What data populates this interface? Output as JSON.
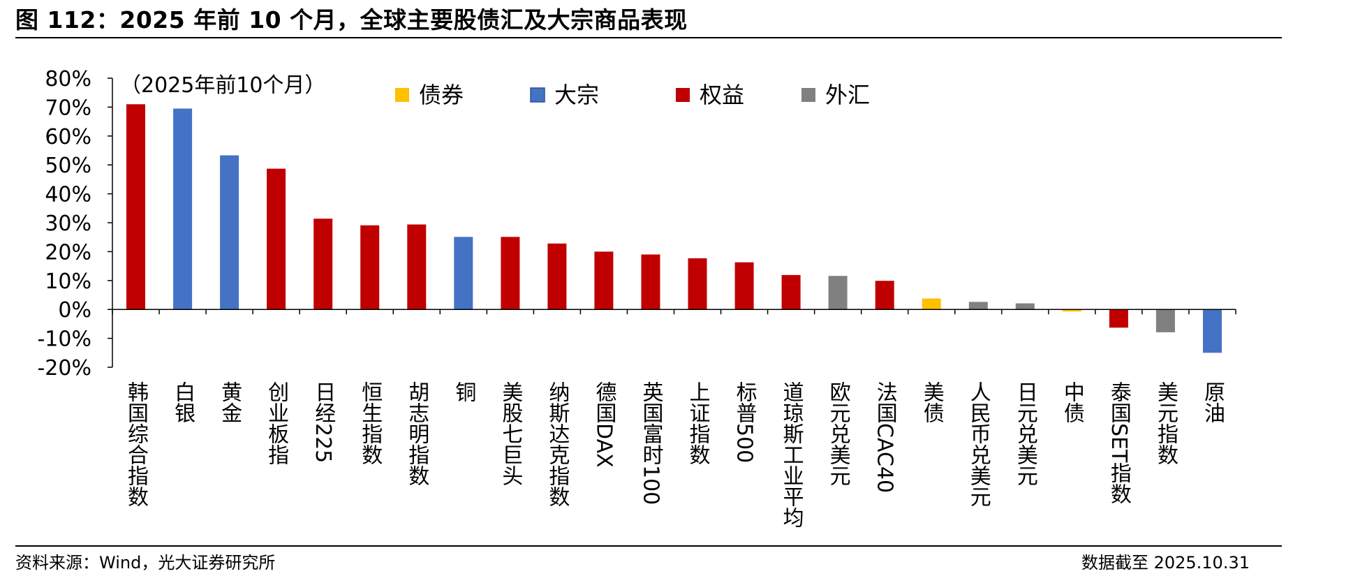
{
  "figure": {
    "title": "图 112：2025 年前 10 个月，全球主要股债汇及大宗商品表现",
    "source": "资料来源：Wind，光大证券研究所",
    "date_note": "数据截至 2025.10.31"
  },
  "chart_data": {
    "type": "bar",
    "note": "（2025年前10个月）",
    "ylim": [
      -20,
      80
    ],
    "yticks": [
      80,
      70,
      60,
      50,
      40,
      30,
      20,
      10,
      0,
      -10,
      -20
    ],
    "ytick_labels": [
      "80%",
      "70%",
      "60%",
      "50%",
      "40%",
      "30%",
      "20%",
      "10%",
      "0%",
      "-10%",
      "-20%"
    ],
    "legend_position": "top",
    "legend": [
      {
        "name": "债券",
        "color": "#FFC000"
      },
      {
        "name": "大宗",
        "color": "#4472C4"
      },
      {
        "name": "权益",
        "color": "#C00000"
      },
      {
        "name": "外汇",
        "color": "#808080"
      }
    ],
    "categories": [
      "韩国综合指数",
      "白银",
      "黄金",
      "创业板指",
      "日经225",
      "恒生指数",
      "胡志明指数",
      "铜",
      "美股七巨头",
      "纳斯达克指数",
      "德国DAX",
      "英国富时100",
      "上证指数",
      "标普500",
      "道琼斯工业平均",
      "欧元兑美元",
      "法国CAC40",
      "美债",
      "人民币兑美元",
      "日元兑美元",
      "中债",
      "泰国SET指数",
      "美元指数",
      "原油"
    ],
    "values": [
      71.0,
      69.5,
      53.3,
      48.7,
      31.4,
      29.1,
      29.4,
      25.1,
      25.1,
      22.8,
      20.0,
      19.0,
      17.7,
      16.3,
      11.9,
      11.6,
      9.9,
      3.8,
      2.6,
      2.1,
      -0.7,
      -6.3,
      -7.9,
      -15.0
    ],
    "groups": [
      "权益",
      "大宗",
      "大宗",
      "权益",
      "权益",
      "权益",
      "权益",
      "大宗",
      "权益",
      "权益",
      "权益",
      "权益",
      "权益",
      "权益",
      "权益",
      "外汇",
      "权益",
      "债券",
      "外汇",
      "外汇",
      "债券",
      "权益",
      "外汇",
      "大宗"
    ]
  }
}
